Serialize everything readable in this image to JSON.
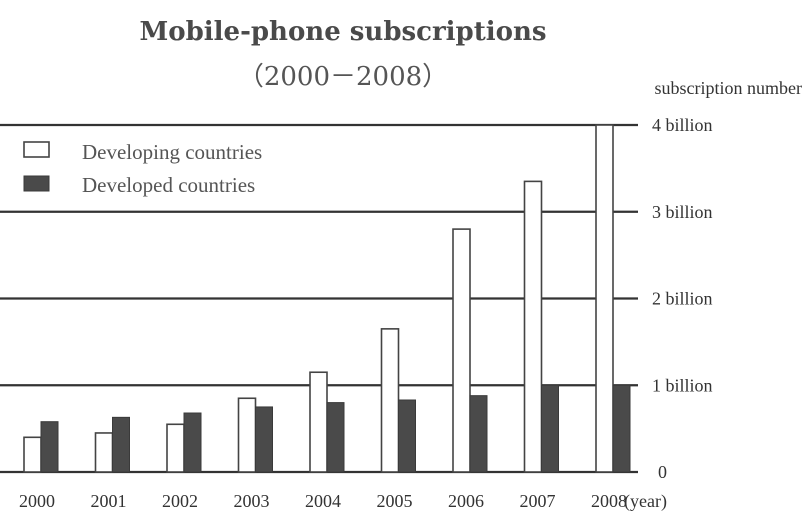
{
  "chart_data": {
    "type": "bar",
    "title": "Mobile-phone subscriptions",
    "subtitle": "（2000－2008）",
    "ylabel": "subscription number",
    "xlabel_suffix": "(year)",
    "categories": [
      "2000",
      "2001",
      "2002",
      "2003",
      "2004",
      "2005",
      "2006",
      "2007",
      "2008"
    ],
    "series": [
      {
        "name": "Developing countries",
        "values": [
          0.4,
          0.45,
          0.55,
          0.85,
          1.15,
          1.65,
          2.8,
          3.35,
          4.0
        ],
        "color": "#ffffff"
      },
      {
        "name": "Developed countries",
        "values": [
          0.58,
          0.63,
          0.68,
          0.75,
          0.8,
          0.83,
          0.88,
          1.0,
          1.0
        ],
        "color": "#4a4a4a"
      }
    ],
    "yticks": [
      {
        "value": 0,
        "label": "0"
      },
      {
        "value": 1,
        "label": "1 billion"
      },
      {
        "value": 2,
        "label": "2 billion"
      },
      {
        "value": 3,
        "label": "3 billion"
      },
      {
        "value": 4,
        "label": "4 billion"
      }
    ],
    "ylim": [
      0,
      4
    ],
    "grid": true,
    "legend_position": "top-left"
  }
}
